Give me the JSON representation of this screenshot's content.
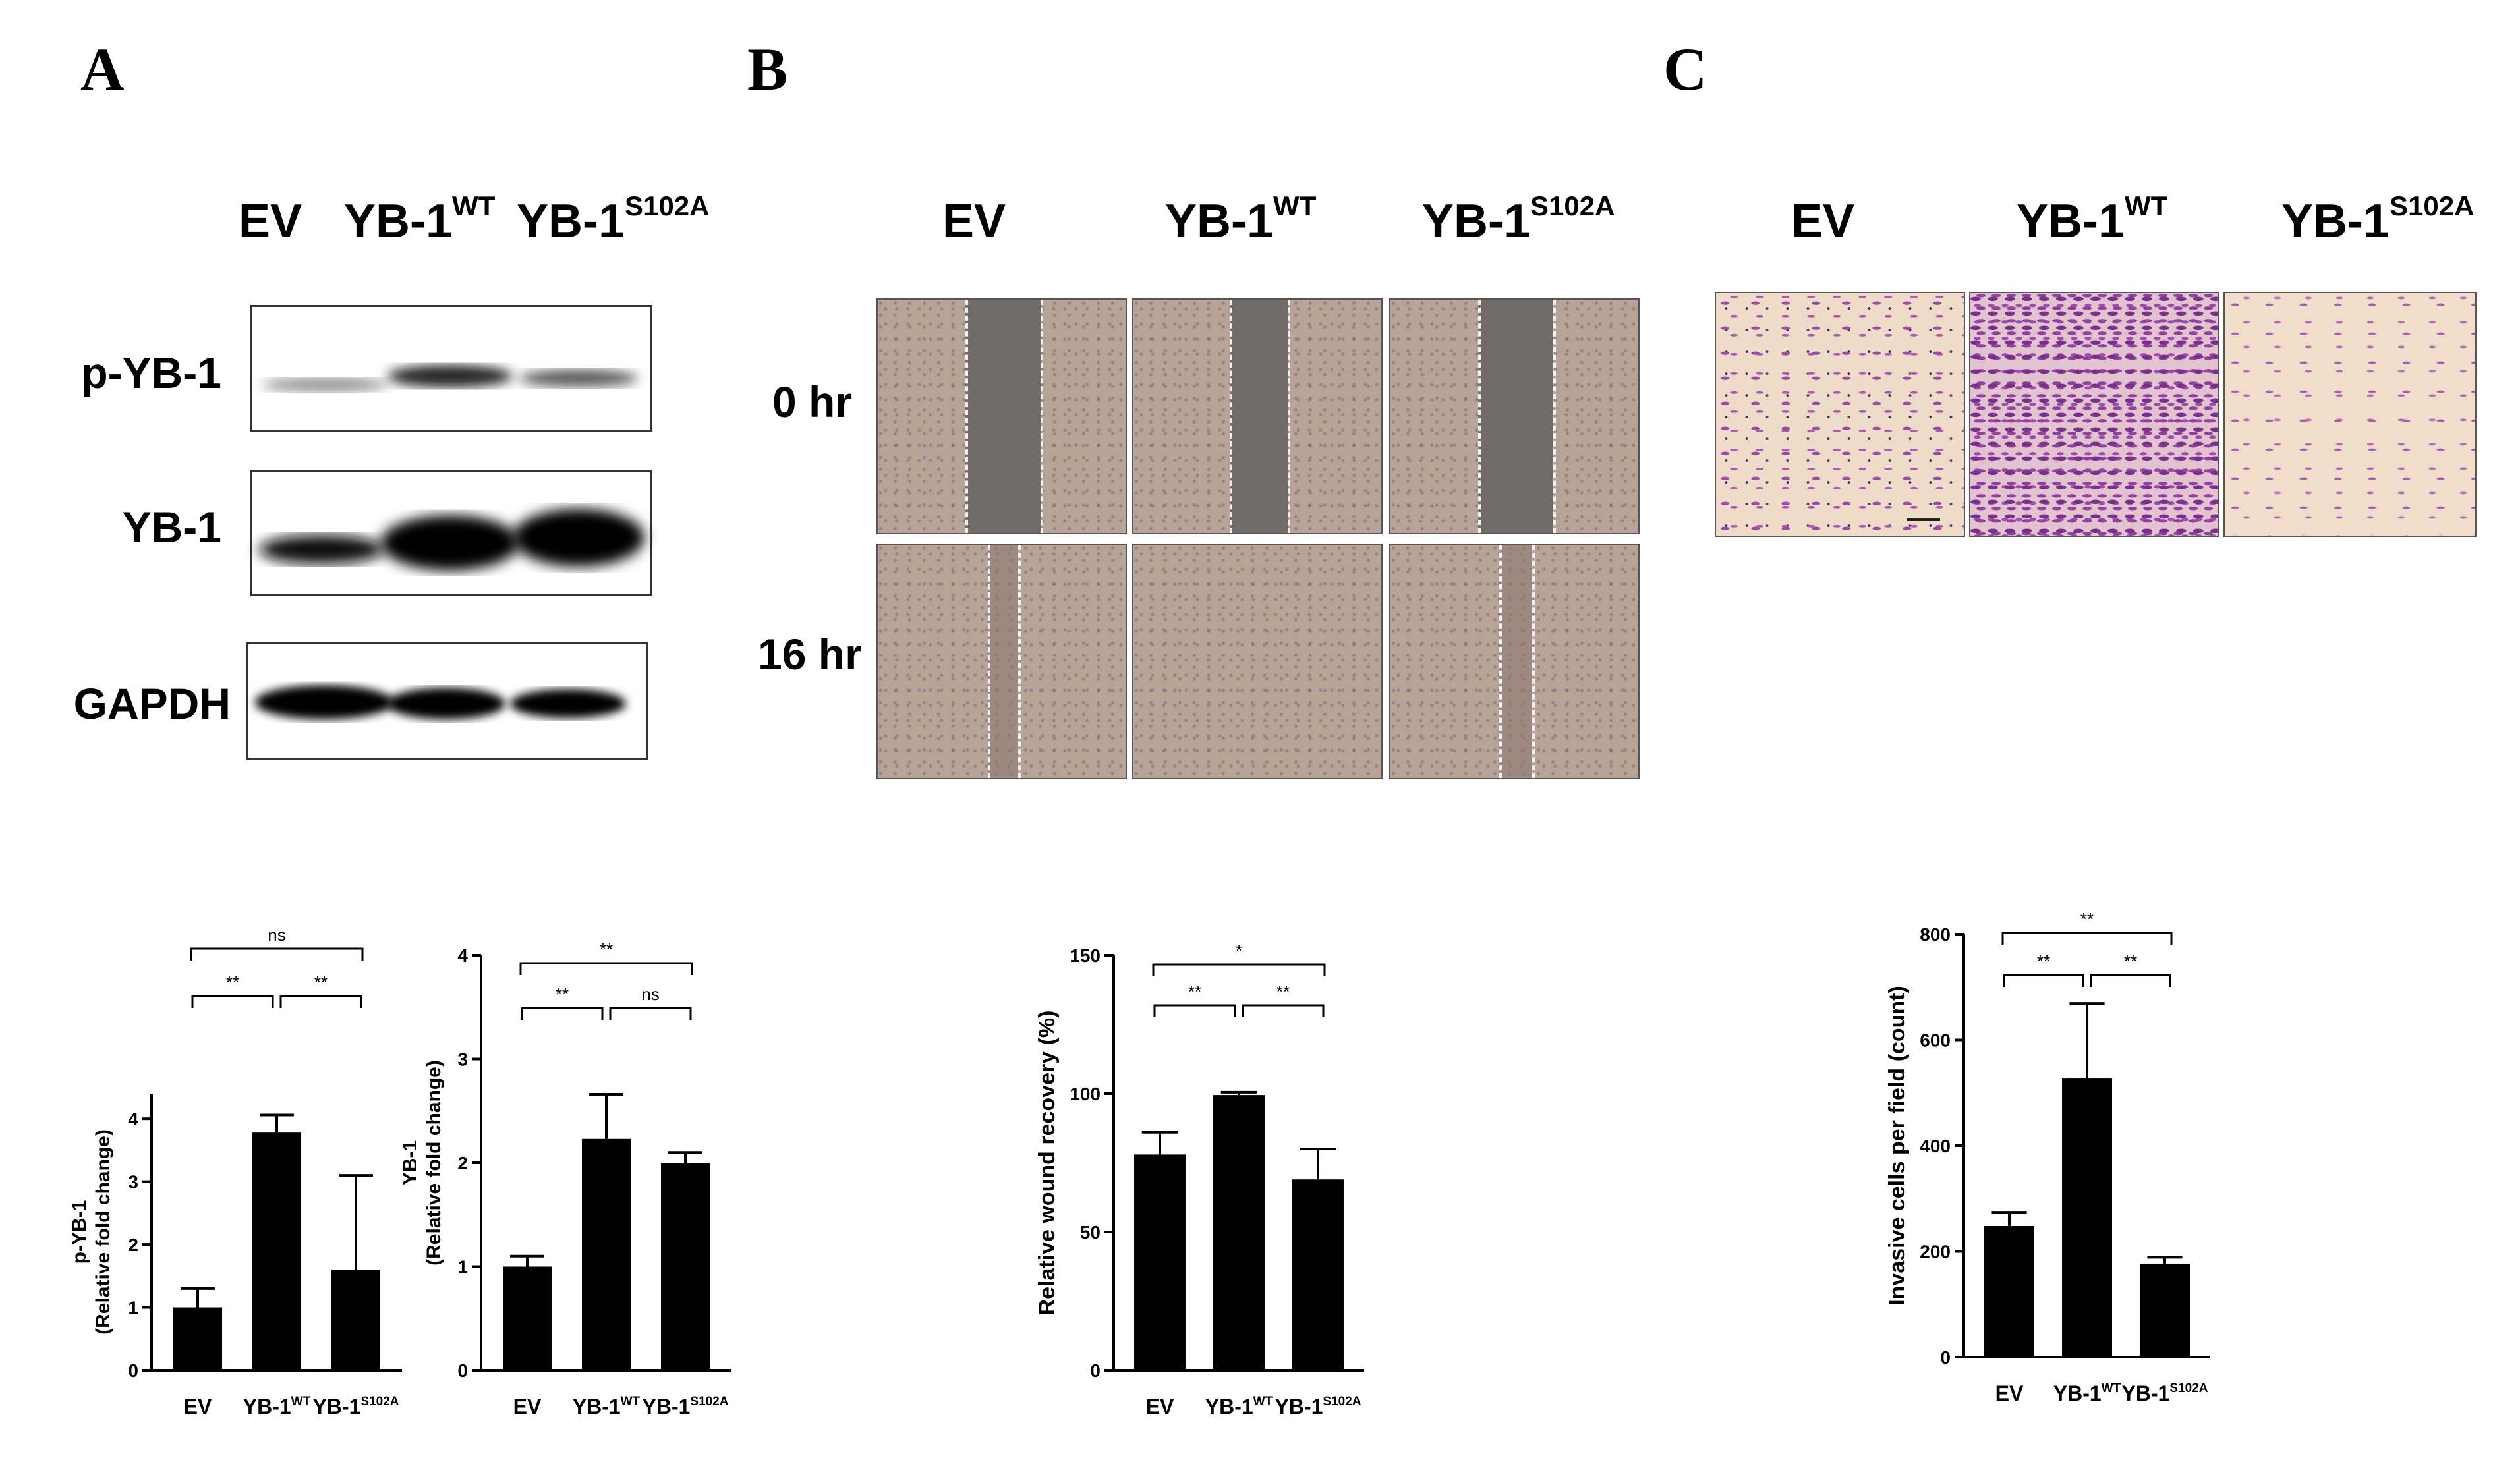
{
  "panels": {
    "A": {
      "letter": "A",
      "columns": [
        {
          "base": "EV",
          "sup": ""
        },
        {
          "base": "YB-1",
          "sup": "WT"
        },
        {
          "base": "YB-1",
          "sup": "S102A"
        }
      ],
      "blot_rows": [
        "p-YB-1",
        "YB-1",
        "GAPDH"
      ]
    },
    "B": {
      "letter": "B",
      "columns": [
        {
          "base": "EV",
          "sup": ""
        },
        {
          "base": "YB-1",
          "sup": "WT"
        },
        {
          "base": "YB-1",
          "sup": "S102A"
        }
      ],
      "time_rows": [
        "0 hr",
        "16 hr"
      ],
      "wound_gap_fraction": {
        "0 hr": [
          0.3,
          0.23,
          0.3
        ],
        "16 hr": [
          0.12,
          0.0,
          0.13
        ]
      }
    },
    "C": {
      "letter": "C",
      "columns": [
        {
          "base": "EV",
          "sup": ""
        },
        {
          "base": "YB-1",
          "sup": "WT"
        },
        {
          "base": "YB-1",
          "sup": "S102A"
        }
      ]
    }
  },
  "chart_data": [
    {
      "id": "pyb1",
      "type": "bar",
      "ylabel": [
        "p-YB-1",
        "(Relative fold change)"
      ],
      "categories": [
        {
          "base": "EV",
          "sup": ""
        },
        {
          "base": "YB-1",
          "sup": "WT"
        },
        {
          "base": "YB-1",
          "sup": "S102A"
        }
      ],
      "values": [
        1.0,
        3.78,
        1.6
      ],
      "errors": [
        0.3,
        0.28,
        1.5
      ],
      "ylim": [
        0,
        4.4
      ],
      "yticks": [
        0,
        1,
        2,
        3,
        4
      ],
      "significance": [
        {
          "from": 0,
          "to": 1,
          "label": "**"
        },
        {
          "from": 1,
          "to": 2,
          "label": "**"
        },
        {
          "from": 0,
          "to": 2,
          "label": "ns"
        }
      ]
    },
    {
      "id": "yb1",
      "type": "bar",
      "ylabel": [
        "YB-1",
        "(Relative fold change)"
      ],
      "categories": [
        {
          "base": "EV",
          "sup": ""
        },
        {
          "base": "YB-1",
          "sup": "WT"
        },
        {
          "base": "YB-1",
          "sup": "S102A"
        }
      ],
      "values": [
        1.0,
        2.23,
        2.0
      ],
      "errors": [
        0.1,
        0.43,
        0.1
      ],
      "ylim": [
        0,
        4
      ],
      "yticks": [
        0,
        1,
        2,
        3,
        4
      ],
      "significance": [
        {
          "from": 0,
          "to": 1,
          "label": "**"
        },
        {
          "from": 1,
          "to": 2,
          "label": "ns"
        },
        {
          "from": 0,
          "to": 2,
          "label": "**"
        }
      ]
    },
    {
      "id": "wound",
      "type": "bar",
      "ylabel": [
        "Relative wound recovery (%)"
      ],
      "categories": [
        {
          "base": "EV",
          "sup": ""
        },
        {
          "base": "YB-1",
          "sup": "WT"
        },
        {
          "base": "YB-1",
          "sup": "S102A"
        }
      ],
      "values": [
        78,
        99.5,
        69
      ],
      "errors": [
        8,
        1,
        11
      ],
      "ylim": [
        0,
        150
      ],
      "yticks": [
        0,
        50,
        100,
        150
      ],
      "significance": [
        {
          "from": 0,
          "to": 1,
          "label": "**"
        },
        {
          "from": 1,
          "to": 2,
          "label": "**"
        },
        {
          "from": 0,
          "to": 2,
          "label": "*"
        }
      ]
    },
    {
      "id": "invasion",
      "type": "bar",
      "ylabel": [
        "Invasive cells per field  (count)"
      ],
      "categories": [
        {
          "base": "EV",
          "sup": ""
        },
        {
          "base": "YB-1",
          "sup": "WT"
        },
        {
          "base": "YB-1",
          "sup": "S102A"
        }
      ],
      "values": [
        248,
        527,
        177
      ],
      "errors": [
        26,
        142,
        12
      ],
      "ylim": [
        0,
        800
      ],
      "yticks": [
        0,
        200,
        400,
        600,
        800
      ],
      "significance": [
        {
          "from": 0,
          "to": 1,
          "label": "**"
        },
        {
          "from": 1,
          "to": 2,
          "label": "**"
        },
        {
          "from": 0,
          "to": 2,
          "label": "**"
        }
      ]
    }
  ]
}
